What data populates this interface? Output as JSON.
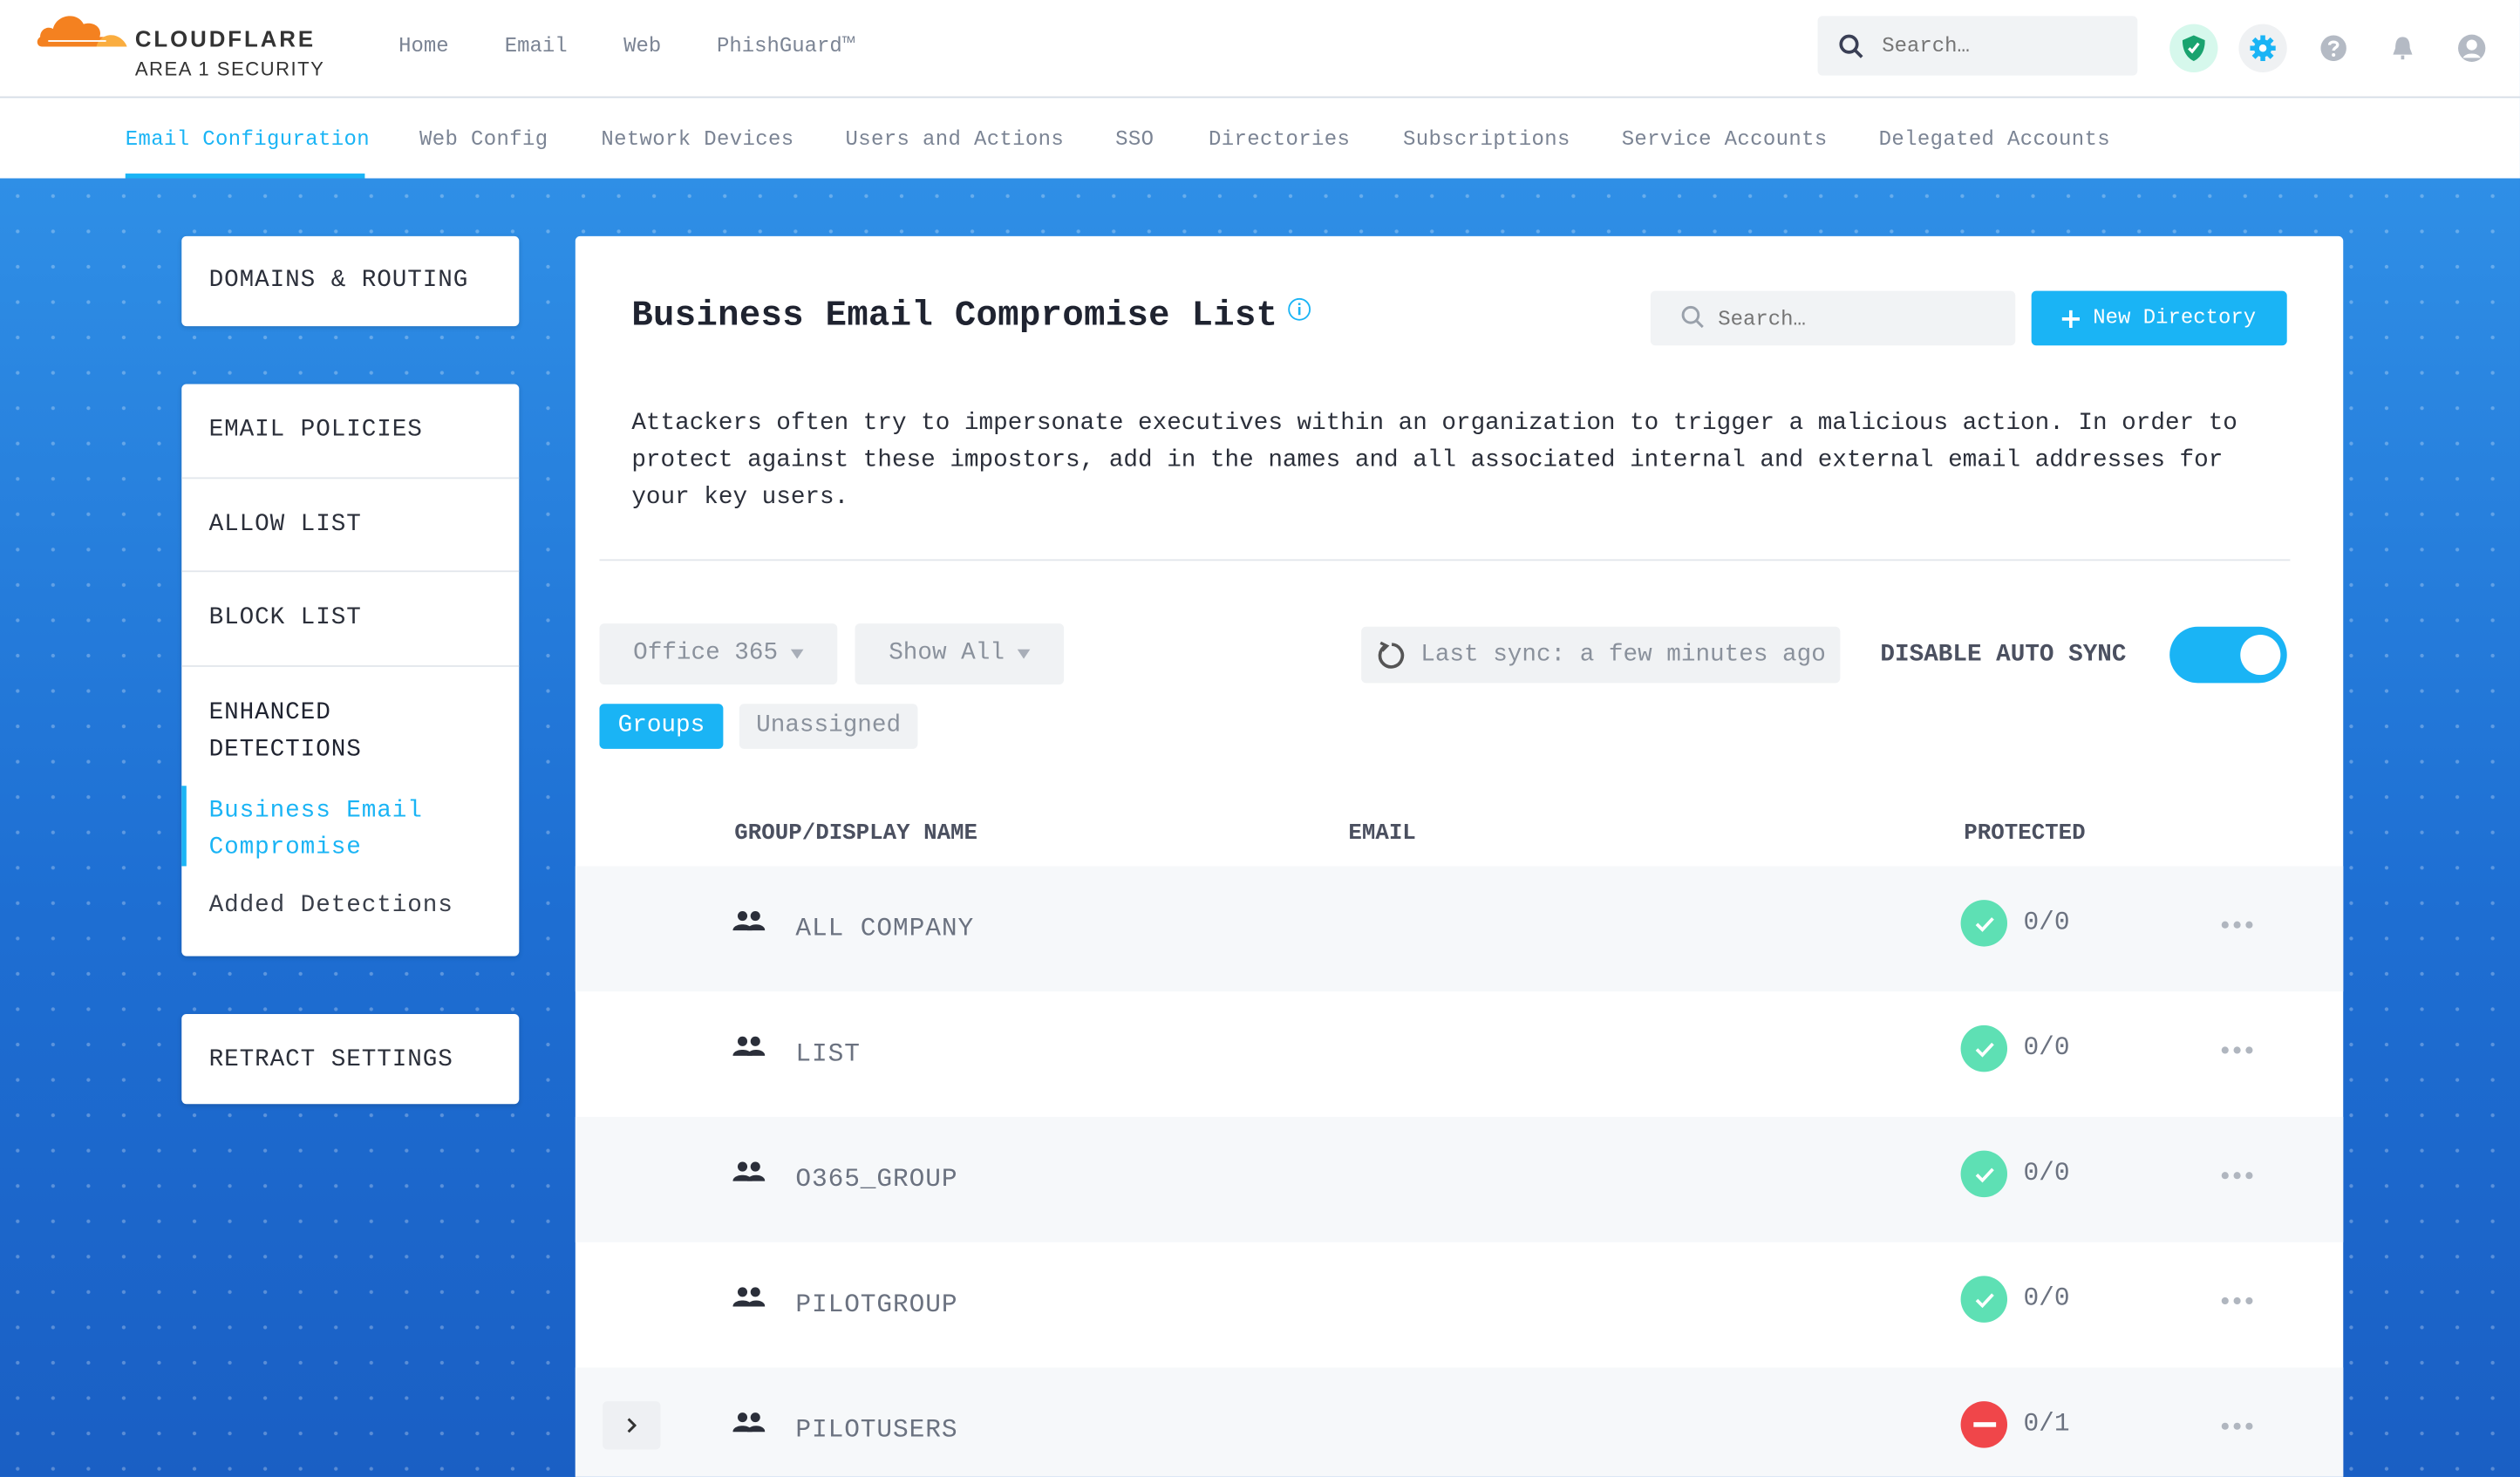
{
  "brand": {
    "name": "CLOUDFLARE",
    "sub": "AREA 1 SECURITY"
  },
  "top_nav": [
    "Home",
    "Email",
    "Web",
    "PhishGuard™"
  ],
  "header_search": {
    "placeholder": "Search…"
  },
  "header_icons": [
    "shield-check-icon",
    "gear-icon",
    "help-icon",
    "bell-icon",
    "user-icon"
  ],
  "sub_nav": {
    "items": [
      "Email Configuration",
      "Web Config",
      "Network Devices",
      "Users and Actions",
      "SSO",
      "Directories",
      "Subscriptions",
      "Service Accounts",
      "Delegated Accounts"
    ],
    "active": "Email Configuration"
  },
  "sidebar": {
    "domains": "DOMAINS & ROUTING",
    "email_policies": "EMAIL POLICIES",
    "allow_list": "ALLOW LIST",
    "block_list": "BLOCK LIST",
    "enhanced_1": "ENHANCED",
    "enhanced_2": "DETECTIONS",
    "bec_1": "Business Email",
    "bec_2": "Compromise",
    "added": "Added Detections",
    "retract": "RETRACT SETTINGS"
  },
  "main": {
    "title": "Business Email Compromise List",
    "search_placeholder": "Search…",
    "new_directory": "New Directory",
    "description": [
      "Attackers often try to impersonate executives within an organization to trigger a malicious action. In order to",
      "protect against these impostors, add in the names and all associated internal and external email addresses for",
      "your key users."
    ],
    "provider_select": "Office 365",
    "filter_select": "Show All",
    "last_sync": "Last sync: a few minutes ago",
    "auto_sync_label": "DISABLE AUTO SYNC",
    "auto_sync_on": true,
    "tabs": {
      "groups": "Groups",
      "unassigned": "Unassigned",
      "active": "Groups"
    },
    "columns": {
      "name": "GROUP/DISPLAY NAME",
      "email": "EMAIL",
      "protected": "PROTECTED"
    },
    "rows": [
      {
        "name": "ALL COMPANY",
        "protected": "0/0",
        "status": "ok"
      },
      {
        "name": "LIST",
        "protected": "0/0",
        "status": "ok"
      },
      {
        "name": "O365_GROUP",
        "protected": "0/0",
        "status": "ok"
      },
      {
        "name": "PILOTGROUP",
        "protected": "0/0",
        "status": "ok"
      },
      {
        "name": "PILOTUSERS",
        "protected": "0/1",
        "status": "error",
        "expandable": true
      }
    ]
  },
  "colors": {
    "accent": "#1ab4f5",
    "ok": "#5ee0b4",
    "error": "#f0464a",
    "brand_orange": "#f48120"
  }
}
